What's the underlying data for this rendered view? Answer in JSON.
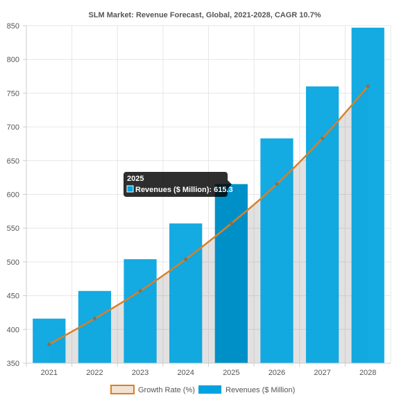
{
  "chart_data": {
    "type": "bar",
    "title": "SLM Market: Revenue Forecast, Global, 2021-2028, CAGR 10.7%",
    "categories": [
      "2021",
      "2022",
      "2023",
      "2024",
      "2025",
      "2026",
      "2027",
      "2028"
    ],
    "series": [
      {
        "name": "Revenues ($ Million)",
        "type": "bar",
        "color": "#00a3e0",
        "values": [
          416,
          457,
          504,
          557,
          615.3,
          683,
          760,
          847
        ]
      },
      {
        "name": "Growth Rate (%)",
        "type": "line",
        "color": "#d98026",
        "values": [
          378,
          416,
          457,
          504,
          557,
          615.3,
          683,
          760
        ]
      }
    ],
    "ylim": [
      350,
      850
    ],
    "yticks": [
      350,
      400,
      450,
      500,
      550,
      600,
      650,
      700,
      750,
      800,
      850
    ],
    "grid": true,
    "legend": "bottom",
    "tooltip": {
      "title": "2025",
      "label": "Revenues ($ Million): 615.3"
    }
  }
}
